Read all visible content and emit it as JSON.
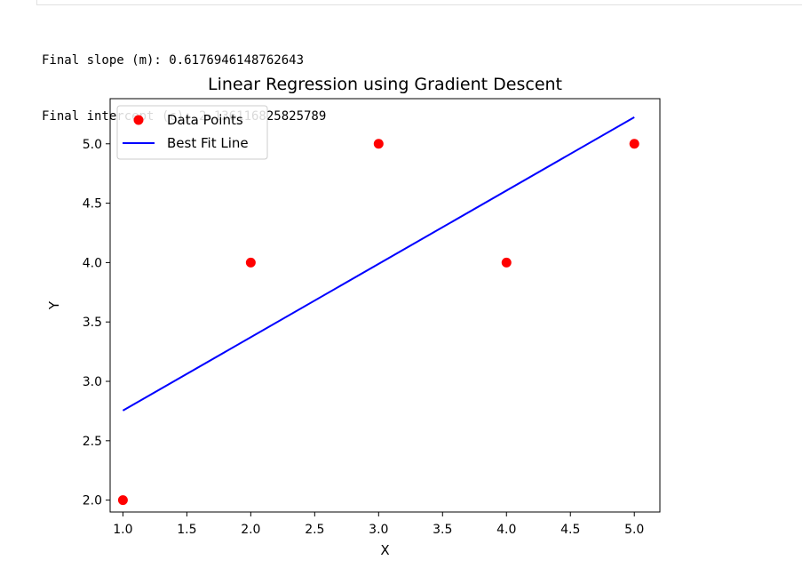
{
  "output": {
    "lines": [
      "Final slope (m): 0.6176946148762643",
      "Final intercept (c): 2.136116825825789"
    ]
  },
  "chart_data": {
    "type": "scatter",
    "title": "Linear Regression using Gradient Descent",
    "xlabel": "X",
    "ylabel": "Y",
    "xlim": [
      0.9,
      5.2
    ],
    "ylim": [
      1.9,
      5.38
    ],
    "xticks": [
      "1.0",
      "1.5",
      "2.0",
      "2.5",
      "3.0",
      "3.5",
      "4.0",
      "4.5",
      "5.0"
    ],
    "yticks": [
      "2.0",
      "2.5",
      "3.0",
      "3.5",
      "4.0",
      "4.5",
      "5.0"
    ],
    "grid": false,
    "legend_position": "upper-left",
    "series": [
      {
        "name": "Data Points",
        "kind": "scatter",
        "color": "#ff0000",
        "x": [
          1,
          2,
          3,
          4,
          5
        ],
        "y": [
          2,
          4,
          5,
          4,
          5
        ]
      },
      {
        "name": "Best Fit Line",
        "kind": "line",
        "color": "#0000ff",
        "x": [
          1,
          5
        ],
        "y": [
          2.754,
          5.224
        ]
      }
    ]
  }
}
